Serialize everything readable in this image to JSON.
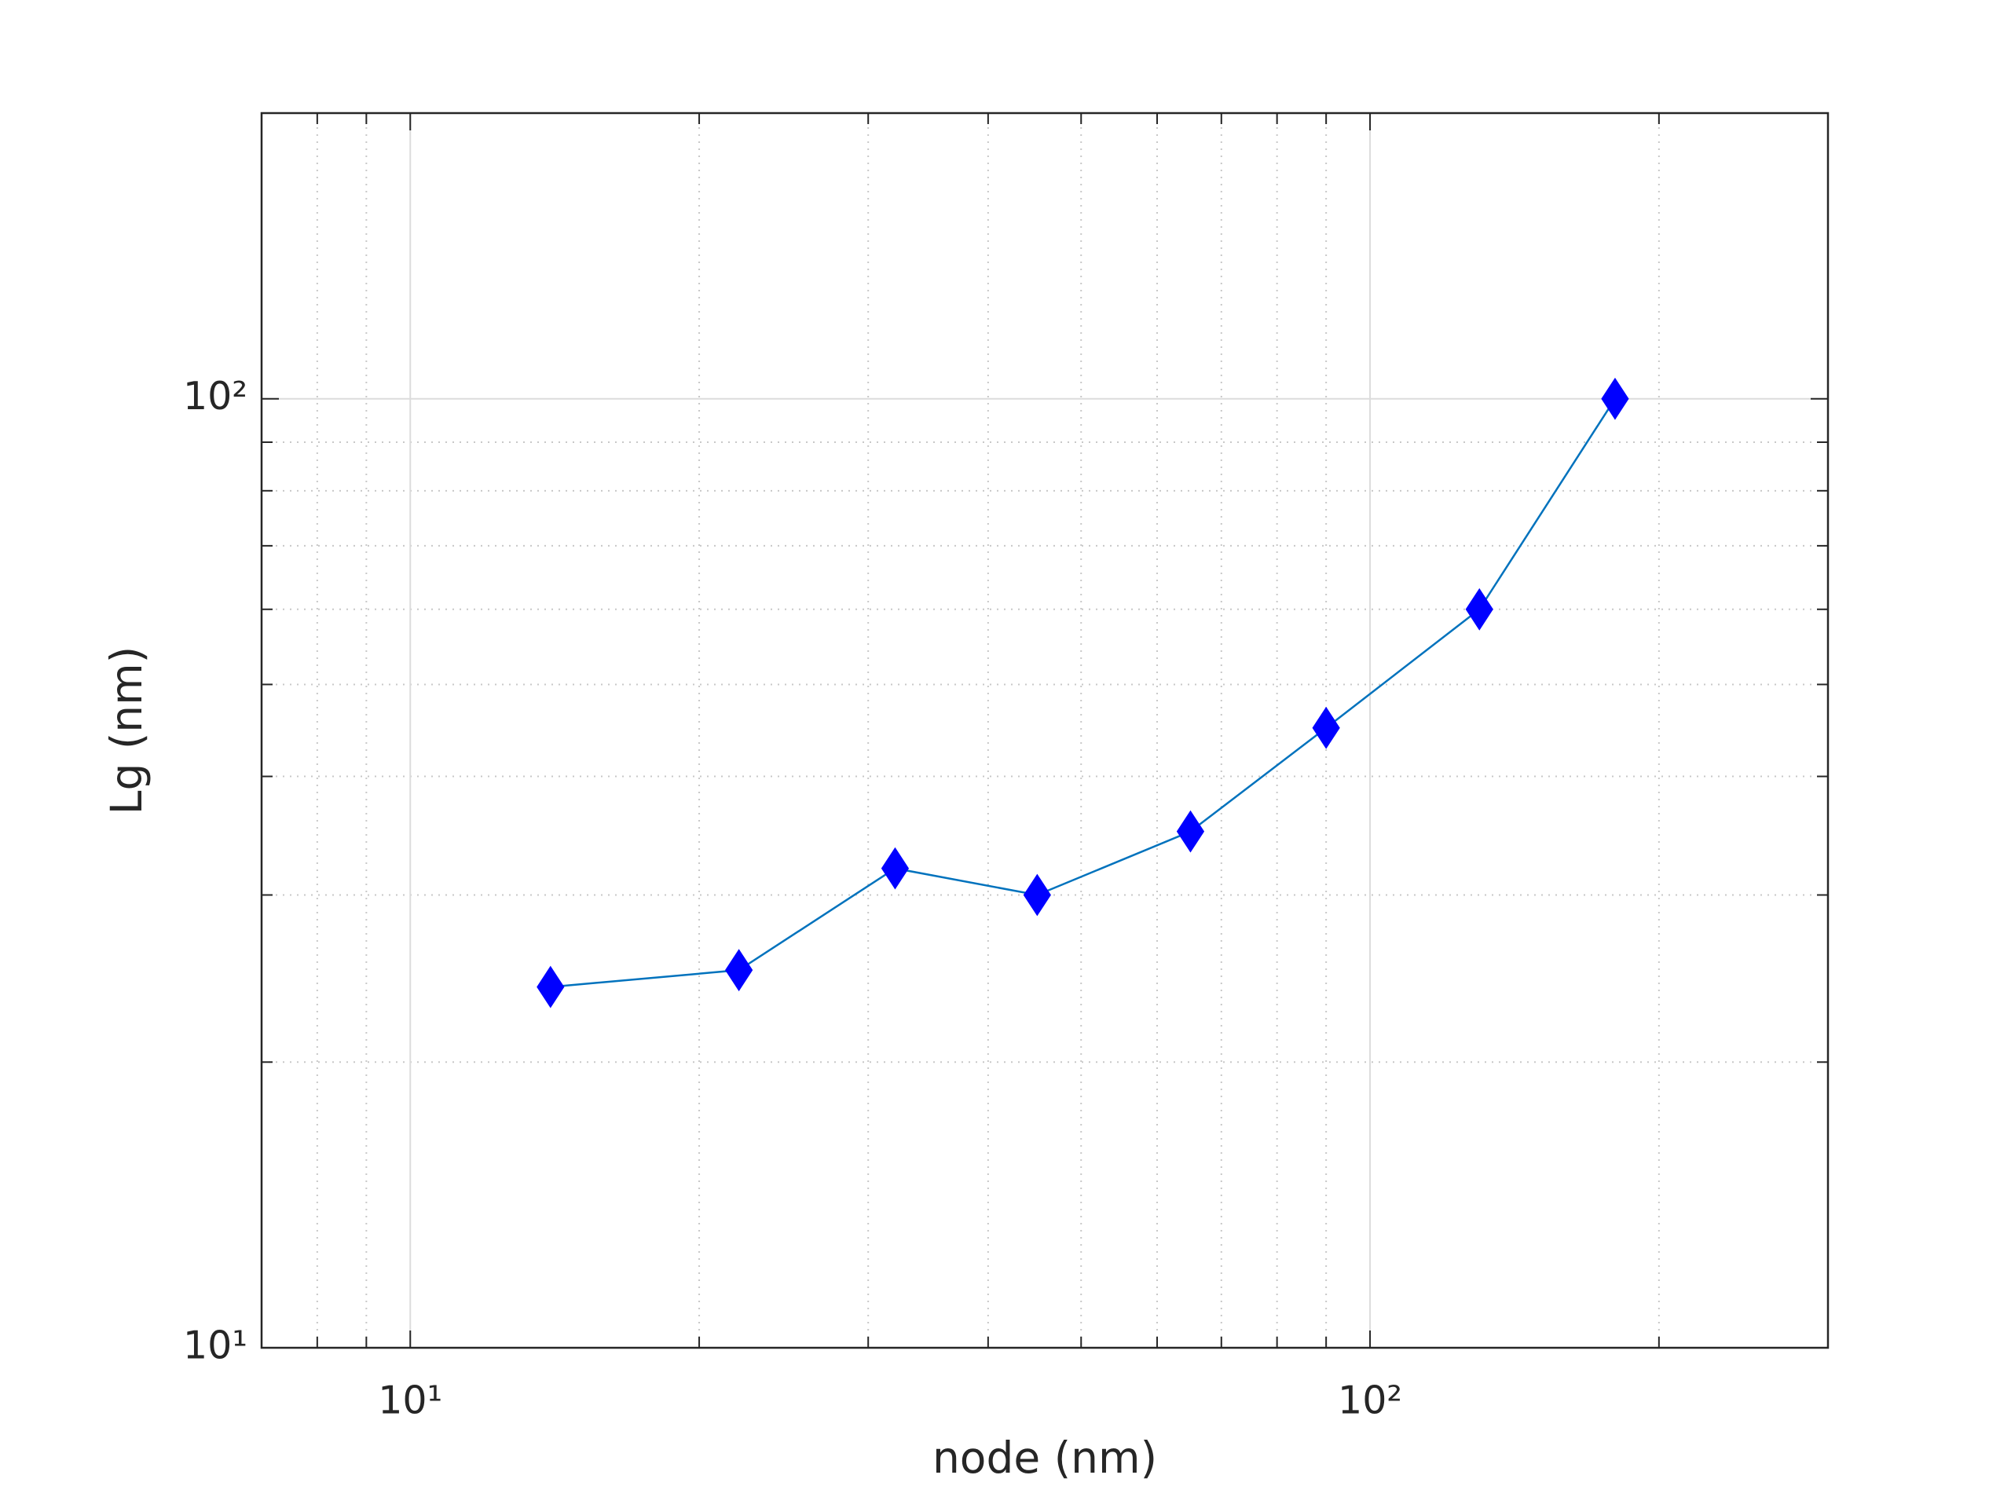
{
  "chart_data": {
    "type": "line",
    "xlabel": "node (nm)",
    "ylabel": "Lg (nm)",
    "xscale": "log",
    "yscale": "log",
    "grid": true,
    "minor_grid": true,
    "x": [
      14,
      22,
      32,
      45,
      65,
      90,
      130,
      180
    ],
    "series": [
      {
        "color": "#0072bd",
        "marker": "diamond",
        "marker_color": "#0000ff",
        "values": [
          24,
          25,
          32,
          30,
          35,
          45,
          60,
          100
        ]
      }
    ],
    "xlim": [
      7,
      300
    ],
    "ylim": [
      10,
      200
    ],
    "xticks": [
      {
        "value": 10,
        "label": "10¹"
      },
      {
        "value": 100,
        "label": "10²"
      }
    ],
    "yticks": [
      {
        "value": 10,
        "label": "10¹"
      },
      {
        "value": 100,
        "label": "10²"
      }
    ],
    "xminor": [
      8,
      9,
      20,
      30,
      40,
      50,
      60,
      70,
      80,
      90,
      200
    ],
    "yminor": [
      20,
      30,
      40,
      50,
      60,
      70,
      80,
      90
    ]
  }
}
